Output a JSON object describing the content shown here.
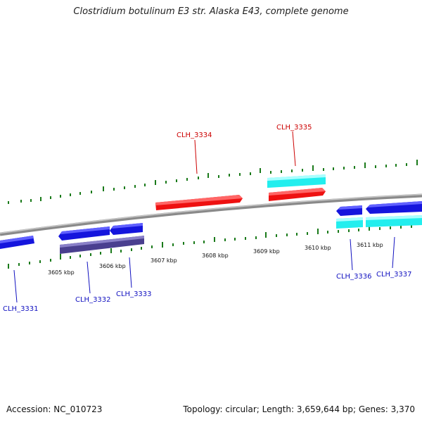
{
  "title": "Clostridium botulinum E3 str. Alaska E43, complete genome",
  "footer": {
    "accession": "Accession: NC_010723",
    "summary": "Topology: circular; Length: 3,659,644 bp; Genes: 3,370"
  },
  "scale_labels": [
    "3605 kbp",
    "3606 kbp",
    "3607 kbp",
    "3608 kbp",
    "3609 kbp",
    "3610 kbp",
    "3611 kbp"
  ],
  "genes": {
    "forward": [
      {
        "label": "CLH_3334"
      },
      {
        "label": "CLH_3335"
      }
    ],
    "reverse": [
      {
        "label": "CLH_3331"
      },
      {
        "label": "CLH_3332"
      },
      {
        "label": "CLH_3333"
      },
      {
        "label": "CLH_3336"
      },
      {
        "label": "CLH_3337"
      }
    ]
  },
  "colors": {
    "forward_gene": "#ee1111",
    "reverse_gene": "#1515dd",
    "cds_cyan": "#22eeee",
    "cds_purple": "#4a3f8f",
    "tick": "#1a7a1a",
    "backbone": "#8a8a8a",
    "forward_label": "#cc0000",
    "reverse_label": "#1010c0"
  }
}
